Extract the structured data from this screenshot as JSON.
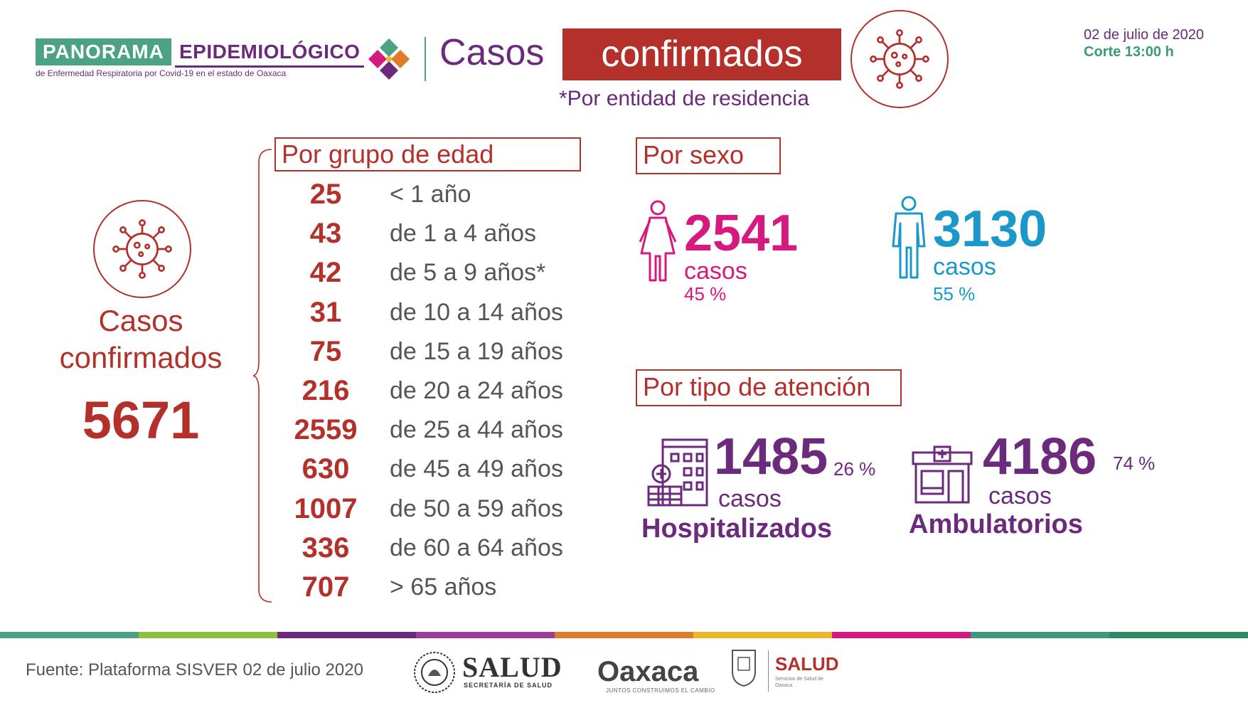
{
  "header": {
    "brand_panorama": "PANORAMA",
    "brand_epidemiologico": "EPIDEMIOLÓGICO",
    "brand_subtitle": "de Enfermedad Respiratoria por Covid-19 en el estado de Oaxaca",
    "title_casos": "Casos",
    "title_confirmados": "confirmados",
    "subtitle": "*Por entidad de residencia",
    "date": "02 de julio de 2020",
    "corte": "Corte 13:00 h"
  },
  "left": {
    "title": "Casos confirmados",
    "total": "5671"
  },
  "age": {
    "header": "Por grupo de edad",
    "rows": [
      {
        "value": "25",
        "label": "< 1 año"
      },
      {
        "value": "43",
        "label": "de 1 a 4 años"
      },
      {
        "value": "42",
        "label": "de 5 a 9 años*"
      },
      {
        "value": "31",
        "label": "de 10 a 14 años"
      },
      {
        "value": "75",
        "label": "de 15 a 19 años"
      },
      {
        "value": "216",
        "label": "de 20 a 24 años"
      },
      {
        "value": "2559",
        "label": "de 25 a 44 años"
      },
      {
        "value": "630",
        "label": "de 45 a 49 años"
      },
      {
        "value": "1007",
        "label": "de 50 a 59 años"
      },
      {
        "value": "336",
        "label": "de 60 a 64 años"
      },
      {
        "value": "707",
        "label": "> 65 años"
      }
    ]
  },
  "sex": {
    "header": "Por sexo",
    "female": {
      "value": "2541",
      "unit": "casos",
      "pct": "45 %",
      "color": "#d6197f",
      "icon": "female-icon"
    },
    "male": {
      "value": "3130",
      "unit": "casos",
      "pct": "55 %",
      "color": "#1a98c9",
      "icon": "male-icon"
    }
  },
  "attention": {
    "header": "Por tipo de atención",
    "hospital": {
      "value": "1485",
      "unit": "casos",
      "pct": "26 %",
      "label": "Hospitalizados",
      "icon": "hospital-icon"
    },
    "ambulatory": {
      "value": "4186",
      "unit": "casos",
      "pct": "74 %",
      "label": "Ambulatorios",
      "icon": "clinic-icon"
    }
  },
  "colors": {
    "red": "#b3302b",
    "purple": "#6b2a7c",
    "green": "#4ba382",
    "pink": "#d6197f",
    "blue": "#1a98c9"
  },
  "footer": {
    "source": "Fuente: Plataforma SISVER 02 de julio 2020",
    "salud_main": "SALUD",
    "salud_sub": "SECRETARÍA DE SALUD",
    "oaxaca": "Oaxaca",
    "oaxaca_sub": "JUNTOS CONSTRUIMOS EL CAMBIO",
    "salud_state": "SALUD",
    "salud_state_sub": "Servicios de Salud de Oaxaca"
  }
}
